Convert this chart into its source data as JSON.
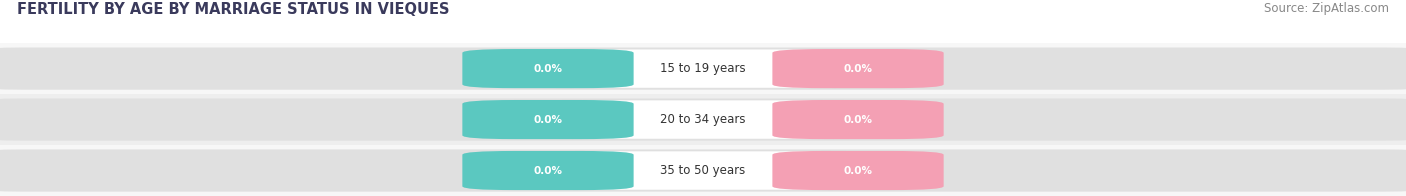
{
  "title": "FERTILITY BY AGE BY MARRIAGE STATUS IN VIEQUES",
  "source": "Source: ZipAtlas.com",
  "categories": [
    "15 to 19 years",
    "20 to 34 years",
    "35 to 50 years"
  ],
  "married_values": [
    "0.0%",
    "0.0%",
    "0.0%"
  ],
  "unmarried_values": [
    "0.0%",
    "0.0%",
    "0.0%"
  ],
  "married_color": "#5bc8c0",
  "unmarried_color": "#f4a0b4",
  "bar_bg_color": "#e0e0e0",
  "row_bg_light": "#f7f7f7",
  "row_bg_dark": "#eeeeee",
  "title_fontsize": 10.5,
  "source_fontsize": 8.5,
  "value_fontsize": 7.5,
  "cat_fontsize": 8.5,
  "legend_fontsize": 8.5,
  "axis_label": "0.0%",
  "figsize": [
    14.06,
    1.96
  ],
  "dpi": 100
}
